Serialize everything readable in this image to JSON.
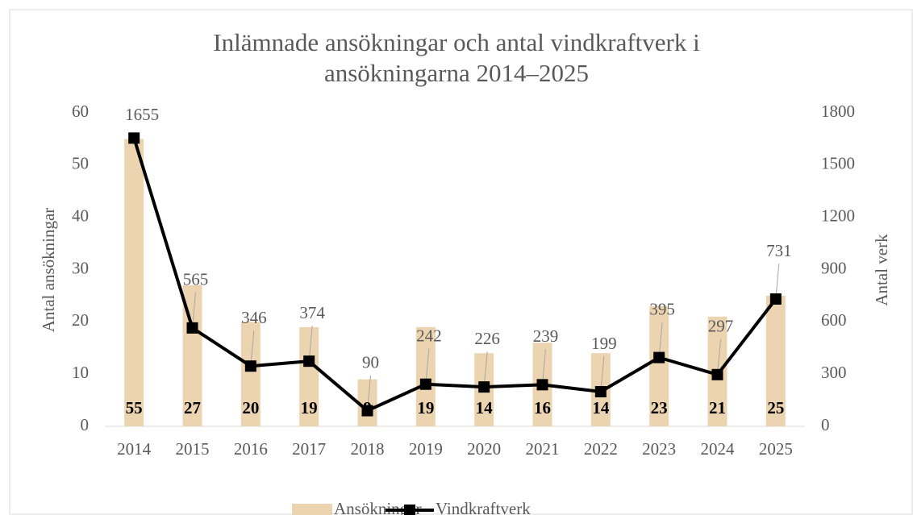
{
  "chart_data": {
    "type": "bar",
    "title": "Inlämnade ansökningar och antal vindkraftverk i ansökningarna 2014–2025",
    "categories": [
      "2014",
      "2015",
      "2016",
      "2017",
      "2018",
      "2019",
      "2020",
      "2021",
      "2022",
      "2023",
      "2024",
      "2025"
    ],
    "series": [
      {
        "name": "Ansökningar",
        "type": "bar",
        "color": "#ecd4b0",
        "values": [
          55,
          27,
          20,
          19,
          9,
          19,
          14,
          16,
          14,
          23,
          21,
          25
        ]
      },
      {
        "name": "Vindkraftverk",
        "type": "line",
        "axis": "y2",
        "color": "#000000",
        "values": [
          1655,
          565,
          346,
          374,
          90,
          242,
          226,
          239,
          199,
          395,
          297,
          731
        ]
      }
    ],
    "ylabel": "Antal ansökningar",
    "y2label": "Antal verk",
    "ylim": [
      0,
      60
    ],
    "yticks": [
      0,
      10,
      20,
      30,
      40,
      50,
      60
    ],
    "y2lim": [
      0,
      1800
    ],
    "y2ticks": [
      0,
      300,
      600,
      900,
      1200,
      1500,
      1800
    ],
    "legend": "bottom"
  }
}
